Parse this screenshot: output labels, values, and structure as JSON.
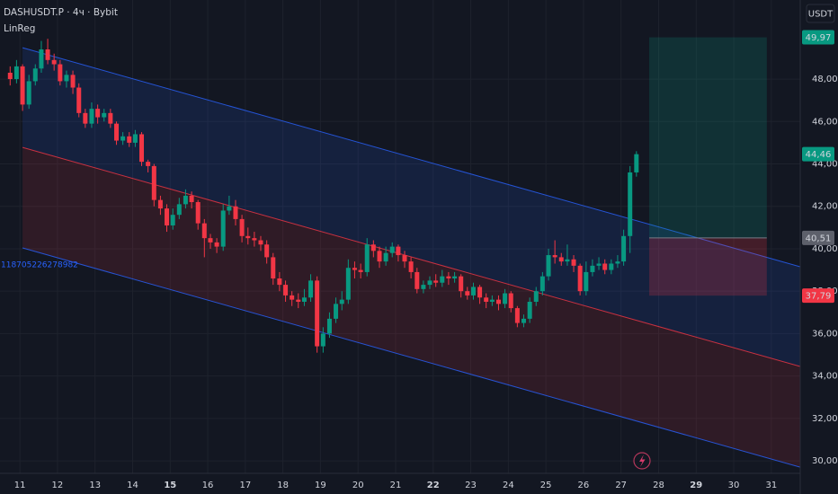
{
  "header": {
    "symbol": "DASHUSDT.P · 4ч · Bybit",
    "indicator": "LinReg",
    "currency": "USDT",
    "indicator_value": "118705226278982"
  },
  "chart_data": {
    "type": "candlestick",
    "x": [
      10.74,
      10.91,
      11.07,
      11.24,
      11.41,
      11.57,
      11.74,
      11.91,
      12.07,
      12.24,
      12.41,
      12.57,
      12.74,
      12.91,
      13.07,
      13.24,
      13.41,
      13.57,
      13.74,
      13.91,
      14.07,
      14.24,
      14.41,
      14.57,
      14.74,
      14.91,
      15.07,
      15.24,
      15.41,
      15.57,
      15.74,
      15.91,
      16.07,
      16.24,
      16.41,
      16.57,
      16.74,
      16.91,
      17.07,
      17.24,
      17.41,
      17.57,
      17.74,
      17.91,
      18.07,
      18.24,
      18.41,
      18.57,
      18.74,
      18.91,
      19.07,
      19.24,
      19.41,
      19.57,
      19.74,
      19.91,
      20.07,
      20.24,
      20.41,
      20.57,
      20.74,
      20.91,
      21.07,
      21.24,
      21.41,
      21.57,
      21.74,
      21.91,
      22.07,
      22.24,
      22.41,
      22.57,
      22.74,
      22.91,
      23.07,
      23.24,
      23.41,
      23.57,
      23.74,
      23.91,
      24.07,
      24.24,
      24.41,
      24.57,
      24.74,
      24.91,
      25.07,
      25.24,
      25.41,
      25.57,
      25.74,
      25.91,
      26.07,
      26.24,
      26.41,
      26.57,
      26.74,
      26.91,
      27.07,
      27.24,
      27.41
    ],
    "open": [
      48.3,
      48.0,
      48.6,
      46.8,
      47.9,
      48.5,
      49.4,
      48.9,
      48.7,
      47.9,
      48.2,
      47.6,
      46.4,
      45.9,
      46.6,
      46.2,
      46.4,
      45.9,
      45.1,
      45.3,
      45.0,
      45.4,
      44.1,
      43.9,
      42.3,
      41.9,
      41.1,
      41.6,
      42.1,
      42.5,
      42.2,
      41.2,
      40.5,
      40.3,
      40.1,
      41.8,
      42.0,
      41.4,
      40.6,
      40.5,
      40.4,
      40.2,
      39.6,
      38.6,
      38.3,
      37.8,
      37.6,
      37.5,
      37.7,
      38.5,
      35.4,
      36.0,
      36.7,
      37.4,
      37.6,
      39.1,
      39.0,
      38.9,
      40.2,
      39.9,
      39.4,
      39.8,
      40.1,
      39.7,
      39.4,
      38.9,
      38.1,
      38.3,
      38.5,
      38.4,
      38.7,
      38.6,
      38.7,
      38.0,
      37.8,
      38.2,
      37.7,
      37.5,
      37.6,
      37.4,
      37.9,
      37.2,
      36.5,
      36.7,
      37.5,
      38.0,
      38.7,
      39.7,
      39.6,
      39.4,
      39.5,
      39.2,
      38.0,
      38.9,
      39.2,
      39.3,
      39.0,
      39.3,
      39.4,
      40.6,
      43.6
    ],
    "high": [
      48.6,
      48.9,
      48.7,
      48.2,
      48.7,
      49.8,
      49.9,
      49.2,
      48.9,
      48.4,
      48.4,
      47.8,
      46.6,
      46.9,
      46.8,
      46.6,
      46.6,
      46.0,
      45.5,
      45.5,
      45.6,
      45.5,
      44.2,
      44.0,
      42.5,
      42.1,
      41.9,
      42.4,
      42.8,
      42.7,
      42.3,
      41.4,
      40.7,
      40.5,
      42.1,
      42.5,
      42.3,
      41.6,
      41.0,
      40.8,
      40.6,
      40.4,
      39.8,
      38.9,
      38.5,
      38.0,
      37.9,
      38.1,
      38.8,
      38.7,
      36.3,
      37.0,
      37.7,
      38.0,
      39.5,
      39.4,
      39.3,
      40.5,
      40.4,
      40.1,
      40.1,
      40.3,
      40.2,
      39.9,
      39.6,
      39.1,
      38.5,
      38.7,
      38.8,
      39.0,
      38.9,
      38.9,
      38.8,
      38.2,
      38.4,
      38.3,
      37.9,
      37.8,
      37.8,
      38.1,
      38.0,
      37.3,
      36.9,
      37.7,
      38.2,
      38.9,
      40.0,
      40.4,
      39.8,
      40.2,
      39.7,
      39.3,
      39.4,
      39.5,
      39.6,
      39.5,
      39.5,
      39.7,
      40.9,
      43.9,
      44.6
    ],
    "low": [
      47.7,
      47.8,
      46.5,
      46.6,
      47.7,
      48.3,
      48.7,
      48.4,
      47.7,
      47.6,
      47.3,
      46.2,
      45.7,
      45.7,
      45.9,
      46.0,
      45.7,
      44.9,
      44.9,
      44.8,
      44.8,
      43.9,
      43.6,
      42.0,
      41.6,
      40.8,
      40.9,
      41.4,
      41.9,
      41.9,
      40.9,
      39.6,
      40.0,
      39.8,
      39.9,
      41.6,
      41.1,
      40.3,
      40.2,
      40.1,
      39.9,
      39.3,
      38.3,
      38.0,
      37.5,
      37.3,
      37.2,
      37.3,
      37.5,
      35.1,
      35.1,
      35.8,
      36.5,
      37.1,
      37.4,
      38.6,
      38.6,
      38.7,
      39.6,
      39.1,
      39.2,
      39.6,
      39.4,
      39.1,
      38.6,
      37.9,
      37.9,
      38.1,
      38.2,
      38.2,
      38.3,
      38.4,
      37.7,
      37.6,
      37.6,
      37.4,
      37.2,
      37.3,
      37.1,
      37.2,
      37.0,
      36.3,
      36.3,
      36.5,
      37.3,
      37.8,
      38.5,
      39.3,
      39.2,
      39.2,
      38.9,
      37.8,
      37.8,
      38.7,
      39.0,
      38.8,
      38.8,
      39.1,
      39.2,
      39.8,
      43.4
    ],
    "close": [
      48.0,
      48.6,
      46.8,
      47.9,
      48.5,
      49.4,
      48.9,
      48.7,
      47.9,
      48.2,
      47.6,
      46.4,
      45.9,
      46.6,
      46.2,
      46.4,
      45.9,
      45.1,
      45.3,
      45.0,
      45.4,
      44.1,
      43.9,
      42.3,
      41.9,
      41.1,
      41.6,
      42.1,
      42.5,
      42.2,
      41.2,
      40.5,
      40.3,
      40.1,
      41.8,
      42.0,
      41.4,
      40.6,
      40.5,
      40.4,
      40.2,
      39.6,
      38.6,
      38.3,
      37.8,
      37.6,
      37.5,
      37.7,
      38.5,
      35.4,
      36.0,
      36.7,
      37.4,
      37.6,
      39.1,
      39.0,
      38.9,
      40.2,
      39.9,
      39.4,
      39.8,
      40.1,
      39.7,
      39.4,
      38.9,
      38.1,
      38.3,
      38.5,
      38.4,
      38.7,
      38.6,
      38.7,
      38.0,
      37.8,
      38.2,
      37.7,
      37.5,
      37.6,
      37.4,
      37.9,
      37.2,
      36.5,
      36.7,
      37.5,
      38.0,
      38.7,
      39.7,
      39.6,
      39.4,
      39.5,
      39.2,
      38.0,
      38.9,
      39.2,
      39.3,
      39.0,
      39.3,
      39.4,
      40.6,
      43.6,
      44.46
    ],
    "up_color": "#089981",
    "down_color": "#f23645",
    "xlim": [
      10.47,
      31.77
    ],
    "ylim": [
      29.41,
      51.73
    ],
    "xticks": [
      11,
      12,
      13,
      14,
      15,
      16,
      17,
      18,
      19,
      20,
      21,
      22,
      23,
      24,
      25,
      26,
      27,
      28,
      29,
      30,
      31
    ],
    "bold_xticks": [
      15,
      22,
      29
    ],
    "yticks": [
      {
        "value": 30,
        "label": "30,00"
      },
      {
        "value": 32,
        "label": "32,00"
      },
      {
        "value": 34,
        "label": "34,00"
      },
      {
        "value": 36,
        "label": "36,00"
      },
      {
        "value": 38,
        "label": "38,00"
      },
      {
        "value": 40,
        "label": "40,00"
      },
      {
        "value": 42,
        "label": "42,00"
      },
      {
        "value": 44,
        "label": "44,00"
      },
      {
        "value": 46,
        "label": "46,00"
      },
      {
        "value": 48,
        "label": "48,00"
      }
    ],
    "grid": true,
    "linreg": {
      "x": [
        11.07,
        31.77
      ],
      "upper": [
        49.48,
        39.15
      ],
      "middle": [
        44.78,
        34.45
      ],
      "lower": [
        40.04,
        29.7
      ]
    },
    "position": {
      "x": [
        27.75,
        30.88
      ],
      "target": 49.97,
      "entry": 40.51,
      "stop": 37.79
    },
    "price_tags": [
      {
        "value": 49.97,
        "label": "49,97",
        "color": "#089981"
      },
      {
        "value": 44.46,
        "label": "44,46",
        "color": "#089981"
      },
      {
        "value": 40.51,
        "label": "40,51",
        "color": "#5d606b"
      },
      {
        "value": 37.79,
        "label": "37,79",
        "color": "#f23645"
      }
    ]
  }
}
